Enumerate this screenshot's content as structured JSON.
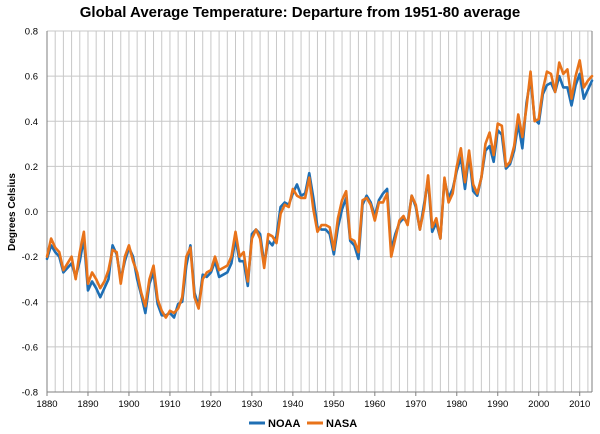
{
  "chart_data": {
    "type": "line",
    "title": "Global Average Temperature: Departure from 1951-80 average",
    "xlabel": "",
    "ylabel": "Degrees Celsius",
    "xlim": [
      1880,
      2013
    ],
    "ylim": [
      -0.8,
      0.8
    ],
    "x_ticks": [
      "1880",
      "1890",
      "1900",
      "1910",
      "1920",
      "1930",
      "1940",
      "1950",
      "1960",
      "1970",
      "1980",
      "1990",
      "2000",
      "2010"
    ],
    "y_ticks": [
      "0.8",
      "0.6",
      "0.4",
      "0.2",
      "0.0",
      "-0.2",
      "-0.4",
      "-0.6",
      "-0.8"
    ],
    "grid": true,
    "legend_position": "bottom",
    "x": [
      1880,
      1881,
      1882,
      1883,
      1884,
      1885,
      1886,
      1887,
      1888,
      1889,
      1890,
      1891,
      1892,
      1893,
      1894,
      1895,
      1896,
      1897,
      1898,
      1899,
      1900,
      1901,
      1902,
      1903,
      1904,
      1905,
      1906,
      1907,
      1908,
      1909,
      1910,
      1911,
      1912,
      1913,
      1914,
      1915,
      1916,
      1917,
      1918,
      1919,
      1920,
      1921,
      1922,
      1923,
      1924,
      1925,
      1926,
      1927,
      1928,
      1929,
      1930,
      1931,
      1932,
      1933,
      1934,
      1935,
      1936,
      1937,
      1938,
      1939,
      1940,
      1941,
      1942,
      1943,
      1944,
      1945,
      1946,
      1947,
      1948,
      1949,
      1950,
      1951,
      1952,
      1953,
      1954,
      1955,
      1956,
      1957,
      1958,
      1959,
      1960,
      1961,
      1962,
      1963,
      1964,
      1965,
      1966,
      1967,
      1968,
      1969,
      1970,
      1971,
      1972,
      1973,
      1974,
      1975,
      1976,
      1977,
      1978,
      1979,
      1980,
      1981,
      1982,
      1983,
      1984,
      1985,
      1986,
      1987,
      1988,
      1989,
      1990,
      1991,
      1992,
      1993,
      1994,
      1995,
      1996,
      1997,
      1998,
      1999,
      2000,
      2001,
      2002,
      2003,
      2004,
      2005,
      2006,
      2007,
      2008,
      2009,
      2010,
      2011,
      2012,
      2013
    ],
    "series": [
      {
        "name": "NOAA",
        "color": "#1f6fb4",
        "values": [
          -0.21,
          -0.15,
          -0.18,
          -0.2,
          -0.27,
          -0.25,
          -0.23,
          -0.29,
          -0.22,
          -0.12,
          -0.35,
          -0.31,
          -0.34,
          -0.38,
          -0.34,
          -0.3,
          -0.15,
          -0.19,
          -0.3,
          -0.22,
          -0.16,
          -0.2,
          -0.3,
          -0.37,
          -0.45,
          -0.32,
          -0.27,
          -0.41,
          -0.46,
          -0.46,
          -0.45,
          -0.47,
          -0.41,
          -0.4,
          -0.24,
          -0.15,
          -0.36,
          -0.42,
          -0.28,
          -0.29,
          -0.27,
          -0.22,
          -0.29,
          -0.28,
          -0.27,
          -0.23,
          -0.12,
          -0.22,
          -0.22,
          -0.33,
          -0.1,
          -0.08,
          -0.1,
          -0.23,
          -0.13,
          -0.15,
          -0.11,
          0.02,
          0.04,
          0.03,
          0.08,
          0.12,
          0.07,
          0.08,
          0.17,
          0.06,
          -0.07,
          -0.08,
          -0.08,
          -0.1,
          -0.19,
          -0.07,
          0.01,
          0.06,
          -0.13,
          -0.15,
          -0.21,
          0.03,
          0.07,
          0.04,
          -0.02,
          0.05,
          0.08,
          0.1,
          -0.17,
          -0.1,
          -0.05,
          -0.03,
          -0.05,
          0.07,
          0.02,
          -0.08,
          0.03,
          0.14,
          -0.09,
          -0.05,
          -0.12,
          0.14,
          0.06,
          0.1,
          0.18,
          0.24,
          0.1,
          0.25,
          0.09,
          0.07,
          0.15,
          0.27,
          0.29,
          0.22,
          0.36,
          0.34,
          0.19,
          0.21,
          0.27,
          0.39,
          0.28,
          0.48,
          0.59,
          0.41,
          0.39,
          0.52,
          0.56,
          0.57,
          0.53,
          0.6,
          0.55,
          0.55,
          0.47,
          0.56,
          0.61,
          0.5,
          0.54,
          0.58
        ]
      },
      {
        "name": "NASA",
        "color": "#e8731a",
        "values": [
          -0.2,
          -0.12,
          -0.16,
          -0.18,
          -0.26,
          -0.23,
          -0.2,
          -0.3,
          -0.18,
          -0.09,
          -0.32,
          -0.27,
          -0.3,
          -0.34,
          -0.31,
          -0.26,
          -0.17,
          -0.18,
          -0.32,
          -0.2,
          -0.15,
          -0.22,
          -0.27,
          -0.36,
          -0.42,
          -0.3,
          -0.24,
          -0.39,
          -0.44,
          -0.47,
          -0.44,
          -0.45,
          -0.43,
          -0.38,
          -0.2,
          -0.16,
          -0.38,
          -0.43,
          -0.3,
          -0.27,
          -0.26,
          -0.2,
          -0.26,
          -0.25,
          -0.24,
          -0.2,
          -0.09,
          -0.2,
          -0.18,
          -0.31,
          -0.12,
          -0.08,
          -0.12,
          -0.25,
          -0.1,
          -0.11,
          -0.14,
          -0.01,
          0.03,
          0.02,
          0.1,
          0.07,
          0.06,
          0.06,
          0.15,
          0.01,
          -0.09,
          -0.06,
          -0.06,
          -0.07,
          -0.17,
          -0.03,
          0.05,
          0.09,
          -0.12,
          -0.13,
          -0.18,
          0.05,
          0.06,
          0.03,
          -0.04,
          0.04,
          0.04,
          0.08,
          -0.2,
          -0.12,
          -0.04,
          -0.02,
          -0.06,
          0.07,
          0.03,
          -0.08,
          0.01,
          0.16,
          -0.07,
          -0.03,
          -0.12,
          0.15,
          0.04,
          0.08,
          0.2,
          0.28,
          0.13,
          0.27,
          0.12,
          0.08,
          0.15,
          0.3,
          0.35,
          0.25,
          0.39,
          0.38,
          0.2,
          0.22,
          0.29,
          0.43,
          0.33,
          0.46,
          0.62,
          0.4,
          0.41,
          0.54,
          0.62,
          0.61,
          0.53,
          0.66,
          0.61,
          0.63,
          0.5,
          0.6,
          0.67,
          0.55,
          0.58,
          0.6
        ]
      }
    ]
  }
}
